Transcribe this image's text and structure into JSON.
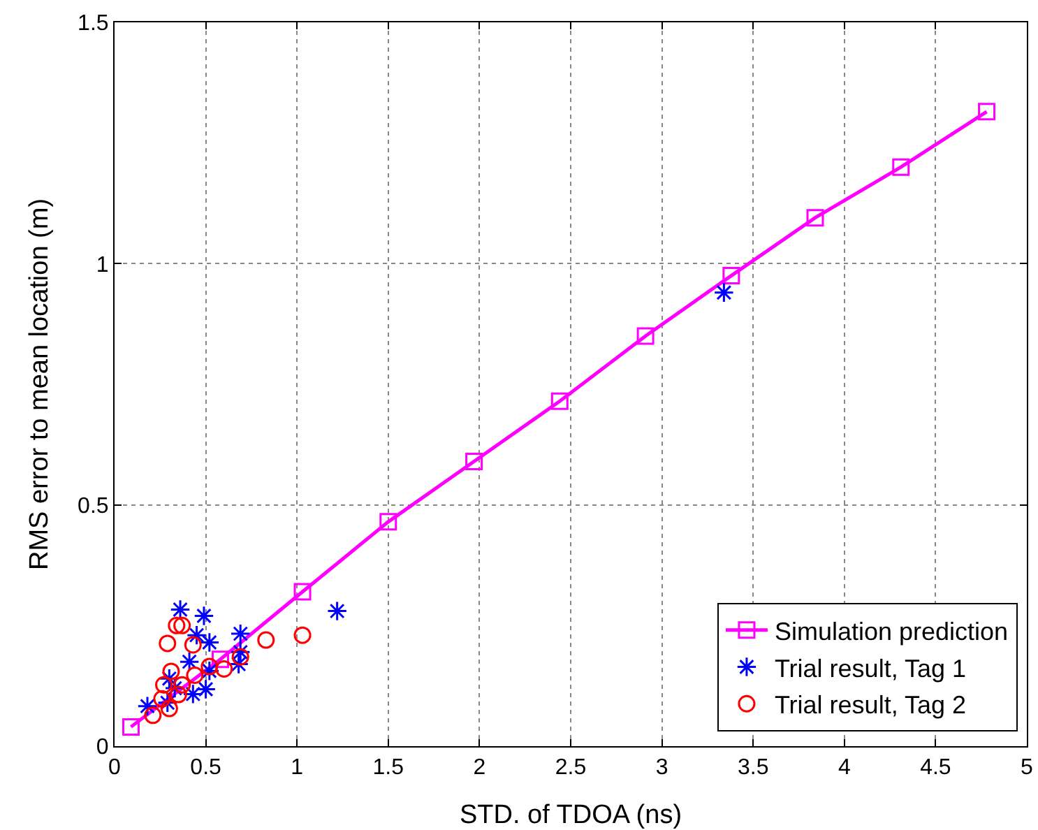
{
  "chart_data": {
    "type": "line",
    "xlabel": "STD. of TDOA (ns)",
    "ylabel": "RMS error to mean location (m)",
    "xlim": [
      0,
      5
    ],
    "xticks": [
      0,
      0.5,
      1,
      1.5,
      2,
      2.5,
      3,
      3.5,
      4,
      4.5,
      5
    ],
    "ylim": [
      0,
      1.5
    ],
    "yticks": [
      0,
      0.5,
      1,
      1.5
    ],
    "grid": true,
    "legend": "bottom right",
    "series": [
      {
        "name": "Simulation prediction",
        "marker": "square",
        "color": "#ff00ff",
        "x": [
          0.09,
          0.58,
          1.03,
          1.5,
          1.97,
          2.44,
          2.91,
          3.38,
          3.84,
          4.31,
          4.78
        ],
        "values": [
          0.04,
          0.18,
          0.32,
          0.465,
          0.59,
          0.715,
          0.85,
          0.975,
          1.095,
          1.2,
          1.315
        ]
      },
      {
        "name": "Trial result, Tag 1",
        "type": "scatter",
        "marker": "cross",
        "color": "#0000ff",
        "x": [
          0.36,
          0.49,
          0.45,
          0.52,
          0.69,
          1.22,
          0.69,
          0.68,
          0.41,
          0.52,
          0.5,
          0.3,
          0.43,
          0.29,
          0.18,
          0.33,
          3.34
        ],
        "values": [
          0.283,
          0.27,
          0.23,
          0.215,
          0.233,
          0.28,
          0.195,
          0.17,
          0.175,
          0.156,
          0.118,
          0.14,
          0.108,
          0.09,
          0.083,
          0.12,
          0.94
        ]
      },
      {
        "name": "Trial result, Tag 2",
        "type": "scatter",
        "marker": "circle",
        "color": "#ff0000",
        "x": [
          0.34,
          0.37,
          0.29,
          0.43,
          0.83,
          1.03,
          0.69,
          0.6,
          0.52,
          0.31,
          0.27,
          0.37,
          0.35,
          0.26,
          0.3,
          0.21,
          0.44
        ],
        "values": [
          0.25,
          0.25,
          0.213,
          0.21,
          0.22,
          0.23,
          0.185,
          0.16,
          0.165,
          0.155,
          0.127,
          0.127,
          0.107,
          0.098,
          0.078,
          0.064,
          0.147
        ]
      }
    ]
  }
}
